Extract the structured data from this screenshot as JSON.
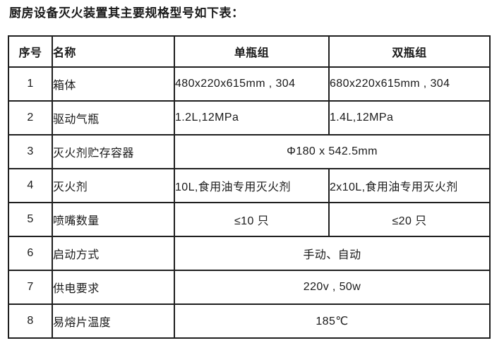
{
  "page": {
    "title": "厨房设备灭火装置其主要规格型号如下表："
  },
  "colors": {
    "background": "#ffffff",
    "text": "#1a1a1a",
    "table_border": "#1f1f1f"
  },
  "table": {
    "headers": [
      "序号",
      "名称",
      "单瓶组",
      "双瓶组"
    ],
    "rows": [
      {
        "no": "1",
        "name": "箱体",
        "single": "480x220x615mm , 304",
        "double": "680x220x615mm , 304"
      },
      {
        "no": "2",
        "name": "驱动气瓶",
        "single": "1.2L,12MPa",
        "double": "1.4L,12MPa"
      },
      {
        "no": "3",
        "name": "灭火剂贮存容器",
        "merged_value": "Φ180 x 542.5mm"
      },
      {
        "no": "4",
        "name": "灭火剂",
        "single": "10L,食用油专用灭火剂",
        "double": "2x10L,食用油专用灭火剂"
      },
      {
        "no": "5",
        "name": "喷嘴数量",
        "single": "≤10 只",
        "double": "≤20 只"
      },
      {
        "no": "6",
        "name": "启动方式",
        "merged_value": "手动、自动"
      },
      {
        "no": "7",
        "name": "供电要求",
        "merged_value": "220v , 50w"
      },
      {
        "no": "8",
        "name": "易熔片温度",
        "merged_value": "185℃"
      }
    ]
  }
}
